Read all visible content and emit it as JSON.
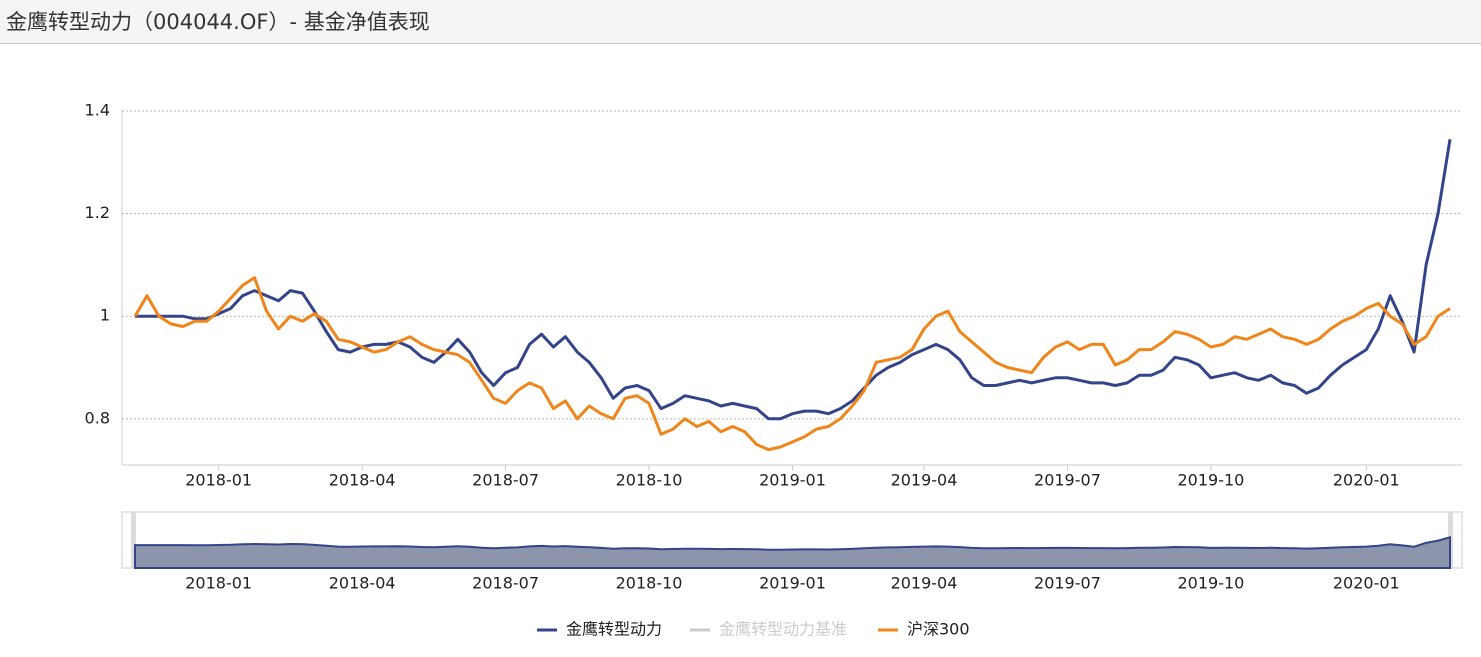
{
  "chart_data": {
    "type": "line",
    "title": "金鹰转型动力（004044.OF）- 基金净值表现",
    "categories": [
      null,
      null,
      null,
      null,
      null,
      null,
      null,
      "2018-01",
      null,
      null,
      null,
      null,
      null,
      null,
      null,
      null,
      null,
      null,
      null,
      "2018-04",
      null,
      null,
      null,
      null,
      null,
      null,
      null,
      null,
      null,
      null,
      null,
      "2018-07",
      null,
      null,
      null,
      null,
      null,
      null,
      null,
      null,
      null,
      null,
      null,
      "2018-10",
      null,
      null,
      null,
      null,
      null,
      null,
      null,
      null,
      null,
      null,
      null,
      "2019-01",
      null,
      null,
      null,
      null,
      null,
      null,
      null,
      null,
      null,
      null,
      "2019-04",
      null,
      null,
      null,
      null,
      null,
      null,
      null,
      null,
      null,
      null,
      null,
      "2019-07",
      null,
      null,
      null,
      null,
      null,
      null,
      null,
      null,
      null,
      null,
      null,
      "2019-10",
      null,
      null,
      null,
      null,
      null,
      null,
      null,
      null,
      null,
      null,
      null,
      null,
      "2020-01",
      null,
      null,
      null,
      null,
      null,
      null,
      null
    ],
    "series": [
      {
        "name": "金鹰转型动力",
        "color": "#34448a",
        "values": [
          1.0,
          1.0,
          1.0,
          1.0,
          1.0,
          0.995,
          0.995,
          1.005,
          1.015,
          1.04,
          1.05,
          1.04,
          1.03,
          1.05,
          1.045,
          1.01,
          0.97,
          0.935,
          0.93,
          0.94,
          0.945,
          0.945,
          0.95,
          0.94,
          0.92,
          0.91,
          0.93,
          0.955,
          0.93,
          0.89,
          0.865,
          0.89,
          0.9,
          0.945,
          0.965,
          0.94,
          0.96,
          0.93,
          0.91,
          0.88,
          0.84,
          0.86,
          0.865,
          0.855,
          0.82,
          0.83,
          0.845,
          0.84,
          0.835,
          0.825,
          0.83,
          0.825,
          0.82,
          0.8,
          0.8,
          0.81,
          0.815,
          0.815,
          0.81,
          0.82,
          0.835,
          0.86,
          0.885,
          0.9,
          0.91,
          0.925,
          0.935,
          0.945,
          0.935,
          0.915,
          0.88,
          0.865,
          0.865,
          0.87,
          0.875,
          0.87,
          0.875,
          0.88,
          0.88,
          0.875,
          0.87,
          0.87,
          0.865,
          0.87,
          0.885,
          0.885,
          0.895,
          0.92,
          0.915,
          0.905,
          0.88,
          0.885,
          0.89,
          0.88,
          0.875,
          0.885,
          0.87,
          0.865,
          0.85,
          0.86,
          0.885,
          0.905,
          0.92,
          0.935,
          0.975,
          1.04,
          0.99,
          0.93,
          1.1,
          1.2,
          1.345
        ]
      },
      {
        "name": "金鹰转型动力基准",
        "color": "#cccccc",
        "hidden": true,
        "values": [
          null,
          null,
          null,
          null,
          null,
          null,
          null,
          null,
          null,
          null,
          null,
          null,
          null,
          null,
          null,
          null,
          null,
          null,
          null,
          null,
          null,
          null,
          null,
          null,
          null,
          null,
          null,
          null,
          null,
          null,
          null,
          null,
          null,
          null,
          null,
          null,
          null,
          null,
          null,
          null,
          null,
          null,
          null,
          null,
          null,
          null,
          null,
          null,
          null,
          null,
          null,
          null,
          null,
          null,
          null,
          null,
          null,
          null,
          null,
          null,
          null,
          null,
          null,
          null,
          null,
          null,
          null,
          null,
          null,
          null,
          null,
          null,
          null,
          null,
          null,
          null,
          null,
          null,
          null,
          null,
          null,
          null,
          null,
          null,
          null,
          null,
          null,
          null,
          null,
          null,
          null,
          null,
          null,
          null,
          null,
          null,
          null,
          null,
          null,
          null,
          null,
          null,
          null,
          null,
          null,
          null,
          null,
          null,
          null,
          null,
          null
        ]
      },
      {
        "name": "沪深300",
        "color": "#f08519",
        "values": [
          1.0,
          1.04,
          1.0,
          0.985,
          0.98,
          0.99,
          0.99,
          1.01,
          1.035,
          1.06,
          1.075,
          1.01,
          0.975,
          1.0,
          0.99,
          1.005,
          0.99,
          0.955,
          0.95,
          0.94,
          0.93,
          0.935,
          0.95,
          0.96,
          0.945,
          0.935,
          0.93,
          0.925,
          0.91,
          0.875,
          0.84,
          0.83,
          0.855,
          0.87,
          0.86,
          0.82,
          0.835,
          0.8,
          0.825,
          0.81,
          0.8,
          0.84,
          0.845,
          0.83,
          0.77,
          0.78,
          0.8,
          0.785,
          0.795,
          0.775,
          0.785,
          0.775,
          0.75,
          0.74,
          0.745,
          0.755,
          0.765,
          0.78,
          0.785,
          0.8,
          0.825,
          0.855,
          0.91,
          0.915,
          0.92,
          0.935,
          0.975,
          1.0,
          1.01,
          0.97,
          0.95,
          0.93,
          0.91,
          0.9,
          0.895,
          0.89,
          0.92,
          0.94,
          0.95,
          0.935,
          0.945,
          0.945,
          0.905,
          0.915,
          0.935,
          0.935,
          0.95,
          0.97,
          0.965,
          0.955,
          0.94,
          0.945,
          0.96,
          0.955,
          0.965,
          0.975,
          0.96,
          0.955,
          0.945,
          0.955,
          0.975,
          0.99,
          1.0,
          1.015,
          1.025,
          1.0,
          0.985,
          0.945,
          0.96,
          1.0,
          1.015
        ]
      }
    ],
    "ylim": [
      0.71,
      1.4
    ],
    "yticks": [
      0.8,
      1,
      1.2,
      1.4
    ],
    "grid": true
  }
}
